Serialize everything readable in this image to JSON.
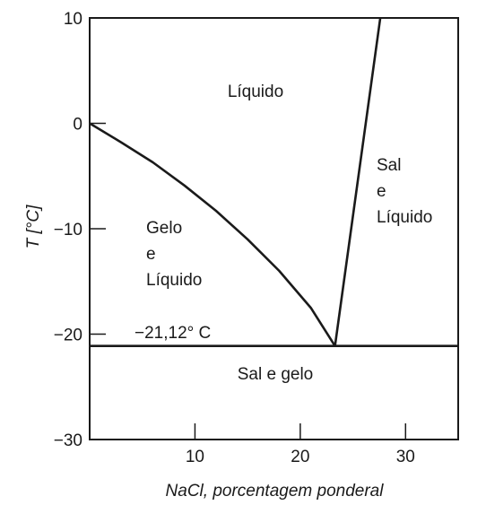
{
  "chart_data": {
    "type": "line",
    "title": "",
    "xlabel": "NaCl, porcentagem ponderal",
    "ylabel": "T [°C]",
    "xlim": [
      0,
      35
    ],
    "ylim": [
      -30,
      10
    ],
    "xticks": [
      10,
      20,
      30
    ],
    "yticks": [
      10,
      0,
      -10,
      -20,
      -30
    ],
    "xtick_labels": [
      "10",
      "20",
      "30"
    ],
    "ytick_labels": [
      "10",
      "0",
      "−10",
      "−20",
      "−30"
    ],
    "grid": false,
    "legend": "none",
    "series": [
      {
        "x": [
          0,
          3,
          6,
          9,
          12,
          15,
          18,
          21,
          23.3
        ],
        "y": [
          0,
          -1.8,
          -3.7,
          -5.9,
          -8.3,
          -11.0,
          -14.0,
          -17.5,
          -21.12
        ]
      },
      {
        "x": [
          23.3,
          27.6
        ],
        "y": [
          -21.12,
          10
        ]
      },
      {
        "x": [
          0,
          35
        ],
        "y": [
          -21.12,
          -21.12
        ]
      }
    ],
    "eutectic_label": "−21,12° C",
    "regions": {
      "liquid": "Líquido",
      "ice_liquid": [
        "Gelo",
        "e",
        "Líquido"
      ],
      "salt_liquid": [
        "Sal",
        "e",
        "Líquido"
      ],
      "salt_ice": "Sal e gelo"
    },
    "colors": {
      "ink": "#1a1a1a",
      "background": "#ffffff"
    }
  }
}
